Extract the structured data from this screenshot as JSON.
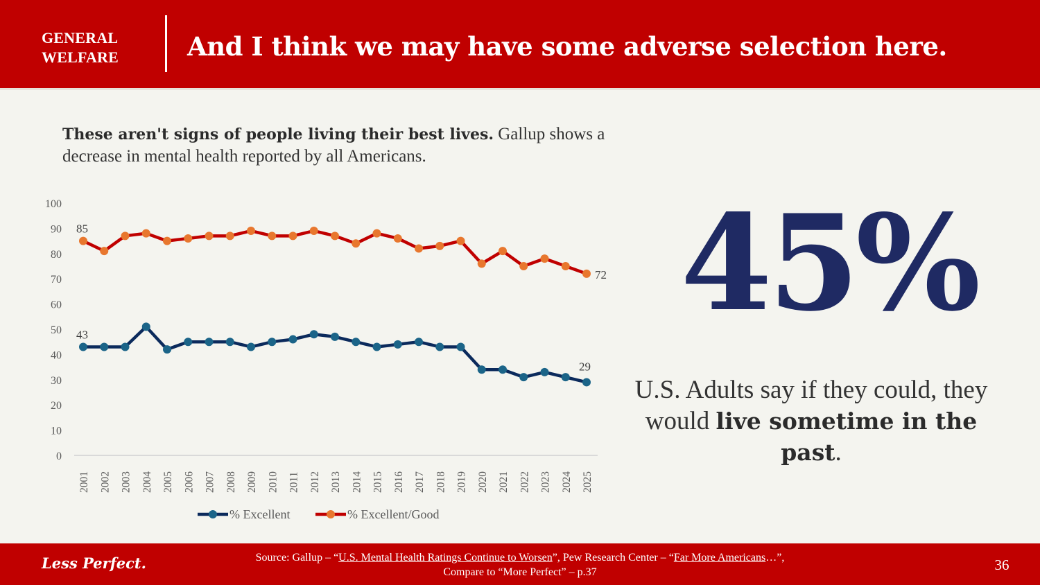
{
  "header": {
    "section_line1": "GENERAL",
    "section_line2": "WELFARE",
    "title": "And I think we may have some adverse selection here."
  },
  "intro": {
    "bold": "These aren't signs of people living their best lives.",
    "rest": " Gallup shows a decrease in mental health reported by all Americans."
  },
  "stat": {
    "value": "45%",
    "caption_plain": "U.S. Adults say if they could, they would ",
    "caption_bold": "live sometime in the past",
    "caption_end": "."
  },
  "footer": {
    "brand": "Less Perfect.",
    "source_prefix": "Source: Gallup – “",
    "source_link1": "U.S. Mental Health Ratings Continue to Worsen",
    "source_mid": "”,  Pew Research Center – “",
    "source_link2": "Far More Americans",
    "source_after": "…”,",
    "source_line2": "Compare to “More Perfect” – p.37",
    "page_number": "36"
  },
  "colors": {
    "brand_red": "#C00000",
    "navy": "#1F2A63",
    "excellent_line": "#0B2A5C",
    "excellent_marker": "#1B6488",
    "good_line": "#C00000",
    "good_marker": "#E8772E"
  },
  "chart_data": {
    "type": "line",
    "title": "",
    "xlabel": "",
    "ylabel": "",
    "ylim": [
      0,
      100
    ],
    "yticks": [
      0,
      10,
      20,
      30,
      40,
      50,
      60,
      70,
      80,
      90,
      100
    ],
    "grid": false,
    "legend_position": "bottom",
    "categories": [
      "2001",
      "2002",
      "2003",
      "2004",
      "2005",
      "2006",
      "2007",
      "2008",
      "2009",
      "2010",
      "2011",
      "2012",
      "2013",
      "2014",
      "2015",
      "2016",
      "2017",
      "2018",
      "2019",
      "2020",
      "2021",
      "2022",
      "2023",
      "2024",
      "2025"
    ],
    "series": [
      {
        "name": "% Excellent",
        "values": [
          43,
          43,
          43,
          51,
          42,
          45,
          45,
          45,
          43,
          45,
          46,
          48,
          47,
          45,
          43,
          44,
          45,
          43,
          43,
          34,
          34,
          31,
          33,
          31,
          29
        ],
        "data_labels": {
          "first": "43",
          "last": "29"
        }
      },
      {
        "name": "% Excellent/Good",
        "values": [
          85,
          81,
          87,
          88,
          85,
          86,
          87,
          87,
          89,
          87,
          87,
          89,
          87,
          84,
          88,
          86,
          82,
          83,
          85,
          76,
          81,
          75,
          78,
          75,
          72
        ],
        "data_labels": {
          "first": "85",
          "last": "72"
        }
      }
    ]
  }
}
